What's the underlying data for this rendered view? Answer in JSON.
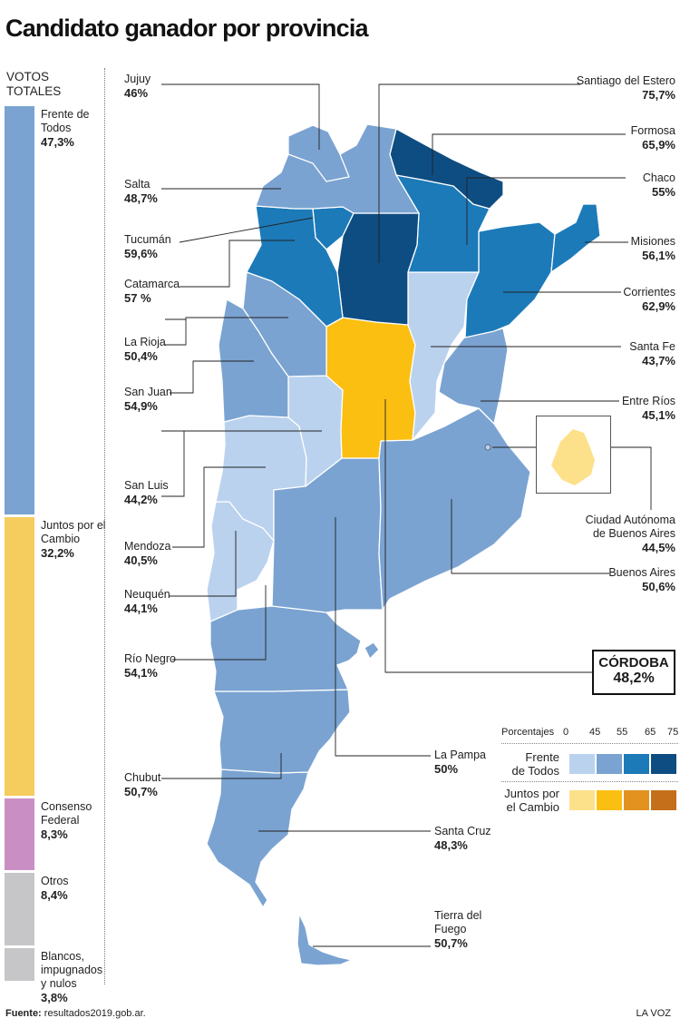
{
  "title": "Candidato ganador por provincia",
  "totals": {
    "heading_line1": "VOTOS",
    "heading_line2": "TOTALES",
    "segments": [
      {
        "label": "Frente de Todos",
        "value": "47,3%",
        "pct": 47.3,
        "color": "#7aa3d1"
      },
      {
        "label": "Juntos por el Cambio",
        "value": "32,2%",
        "pct": 32.2,
        "color": "#f5cc5e"
      },
      {
        "label": "Consenso Federal",
        "value": "8,3%",
        "pct": 8.3,
        "color": "#c98fc4"
      },
      {
        "label": "Otros",
        "value": "8,4%",
        "pct": 8.4,
        "color": "#c6c6c8"
      },
      {
        "label": "Blancos, impugnados y nulos",
        "value": "3,8%",
        "pct": 3.8,
        "color": "#c6c6c8"
      }
    ]
  },
  "provinces": [
    {
      "name": "Jujuy",
      "value": "46%",
      "color": "#7aa3d1"
    },
    {
      "name": "Salta",
      "value": "48,7%",
      "color": "#7aa3d1"
    },
    {
      "name": "Tucumán",
      "value": "59,6%",
      "color": "#1c7ab9"
    },
    {
      "name": "Catamarca",
      "value": "57 %",
      "color": "#1c7ab9"
    },
    {
      "name": "La Rioja",
      "value": "50,4%",
      "color": "#7aa3d1"
    },
    {
      "name": "San Juan",
      "value": "54,9%",
      "color": "#7aa3d1"
    },
    {
      "name": "San Luis",
      "value": "44,2%",
      "color": "#bad2ee"
    },
    {
      "name": "Mendoza",
      "value": "40,5%",
      "color": "#bad2ee"
    },
    {
      "name": "Neuquén",
      "value": "44,1%",
      "color": "#bad2ee"
    },
    {
      "name": "Río Negro",
      "value": "54,1%",
      "color": "#7aa3d1"
    },
    {
      "name": "Chubut",
      "value": "50,7%",
      "color": "#7aa3d1"
    },
    {
      "name": "Santiago del Estero",
      "value": "75,7%",
      "color": "#0e4d82"
    },
    {
      "name": "Formosa",
      "value": "65,9%",
      "color": "#0e4d82"
    },
    {
      "name": "Chaco",
      "value": "55%",
      "color": "#1c7ab9"
    },
    {
      "name": "Misiones",
      "value": "56,1%",
      "color": "#1c7ab9"
    },
    {
      "name": "Corrientes",
      "value": "62,9%",
      "color": "#1c7ab9"
    },
    {
      "name": "Santa Fe",
      "value": "43,7%",
      "color": "#bad2ee"
    },
    {
      "name": "Entre Ríos",
      "value": "45,1%",
      "color": "#7aa3d1"
    },
    {
      "name": "Ciudad Autónoma de Buenos Aires",
      "line1": "Ciudad Autónoma",
      "line2": "de Buenos Aires",
      "value": "44,5%",
      "color": "#fde08a"
    },
    {
      "name": "Buenos Aires",
      "value": "50,6%",
      "color": "#7aa3d1"
    },
    {
      "name": "La Pampa",
      "value": "50%",
      "color": "#7aa3d1"
    },
    {
      "name": "Santa Cruz",
      "value": "48,3%",
      "color": "#7aa3d1"
    },
    {
      "name": "Tierra del Fuego",
      "line1": "Tierra del",
      "line2": "Fuego",
      "value": "50,7%",
      "color": "#7aa3d1"
    },
    {
      "name": "CÓRDOBA",
      "value": "48,2%",
      "color": "#fbbf12"
    }
  ],
  "legend": {
    "title": "Porcentajes",
    "ticks": [
      "0",
      "45",
      "55",
      "65",
      "75"
    ],
    "frente": {
      "line1": "Frente",
      "line2": "de Todos",
      "colors": [
        "#bad2ee",
        "#7aa3d1",
        "#1c7ab9",
        "#0e4d82"
      ]
    },
    "juntos": {
      "line1": "Juntos por",
      "line2": "el Cambio",
      "colors": [
        "#fde08a",
        "#fbbf12",
        "#e3921f",
        "#c56f1a"
      ]
    }
  },
  "footer": {
    "source_label": "Fuente:",
    "source": "resultados2019.gob.ar.",
    "brand": "LA VOZ"
  }
}
